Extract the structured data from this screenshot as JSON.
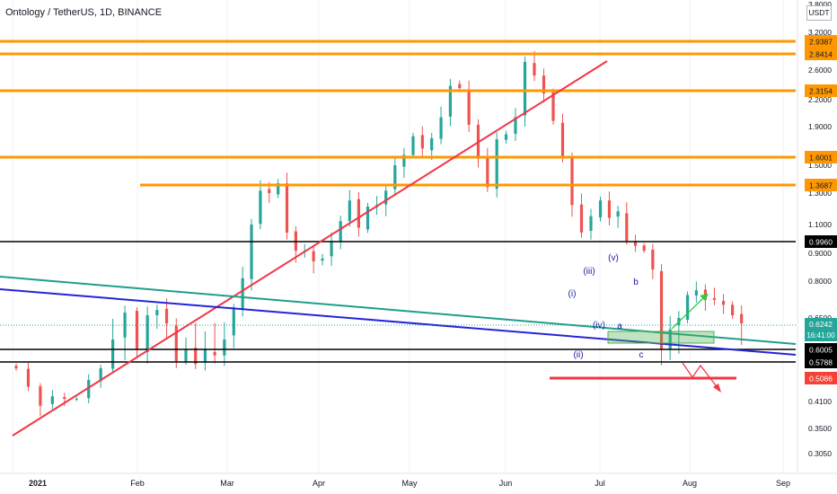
{
  "chart_title": "Ontology / TetherUS, 1D, BINANCE",
  "currency_unit": "USDT",
  "colors": {
    "up": "#26a69a",
    "down": "#ef5350",
    "orange_level": "#ff9800",
    "black_level": "#000000",
    "red_trend": "#f23645",
    "blue_trend": "#2424d8",
    "teal_trend": "#1e9e8a",
    "green_zone": "#4caf50",
    "wave_label": "#1a1aa6",
    "current_price_bg": "#26a69a"
  },
  "chart_data": {
    "type": "candlestick",
    "price_axis_labels": [
      "3.8000",
      "3.2000",
      "2.6000",
      "2.2000",
      "1.9000",
      "1.5000",
      "1.3000",
      "1.1000",
      "0.9000",
      "0.8000",
      "0.6500",
      "0.4100",
      "0.3500",
      "0.3050"
    ],
    "time_axis_labels": [
      "2021",
      "Feb",
      "Mar",
      "Apr",
      "May",
      "Jun",
      "Jul",
      "Aug",
      "Sep"
    ],
    "horizontal_levels": [
      {
        "price": 2.9387,
        "label": "2.9387",
        "color": "orange_level"
      },
      {
        "price": 2.8414,
        "label": "2.8414",
        "color": "orange_level"
      },
      {
        "price": 2.3154,
        "label": "2.3154",
        "color": "orange_level"
      },
      {
        "price": 1.6001,
        "label": "1.6001",
        "color": "orange_level"
      },
      {
        "price": 1.3687,
        "label": "1.3687",
        "color": "orange_level"
      },
      {
        "price": 0.996,
        "label": "0.9960",
        "color": "black_level"
      },
      {
        "price": 0.6005,
        "label": "0.6005",
        "color": "black_level"
      },
      {
        "price": 0.5788,
        "label": "0.5788",
        "color": "black_level"
      },
      {
        "price": 0.5086,
        "label": "0.5086",
        "color": "red_trend"
      }
    ],
    "current_price": {
      "price": 0.6242,
      "label": "0.6242",
      "countdown": "16:41:00"
    },
    "wave_labels": [
      "(i)",
      "(ii)",
      "(iii)",
      "(iv)",
      "(v)",
      "a",
      "b",
      "c"
    ],
    "close_series": {
      "start_date": "2021-01-01",
      "interval_days": 3,
      "values": [
        0.55,
        0.47,
        0.4,
        0.43,
        0.42,
        0.42,
        0.5,
        0.55,
        0.61,
        0.67,
        0.6,
        0.66,
        0.68,
        0.63,
        0.58,
        0.6,
        0.57,
        0.6,
        0.59,
        0.61,
        0.69,
        0.81,
        1.1,
        1.32,
        1.3,
        1.38,
        1.05,
        0.92,
        0.92,
        0.87,
        0.88,
        1.0,
        1.12,
        1.25,
        1.08,
        1.21,
        1.22,
        1.32,
        1.5,
        1.62,
        1.8,
        1.68,
        1.78,
        2.0,
        2.38,
        2.35,
        1.92,
        1.58,
        1.35,
        1.77,
        1.82,
        2.0,
        2.72,
        2.52,
        2.28,
        1.96,
        1.6,
        1.22,
        1.05,
        1.15,
        1.25,
        1.14,
        1.18,
        1.0,
        0.96,
        0.92,
        0.84,
        0.6,
        0.62,
        0.65,
        0.74,
        0.76,
        0.72,
        0.72,
        0.7,
        0.66,
        0.63
      ]
    }
  }
}
